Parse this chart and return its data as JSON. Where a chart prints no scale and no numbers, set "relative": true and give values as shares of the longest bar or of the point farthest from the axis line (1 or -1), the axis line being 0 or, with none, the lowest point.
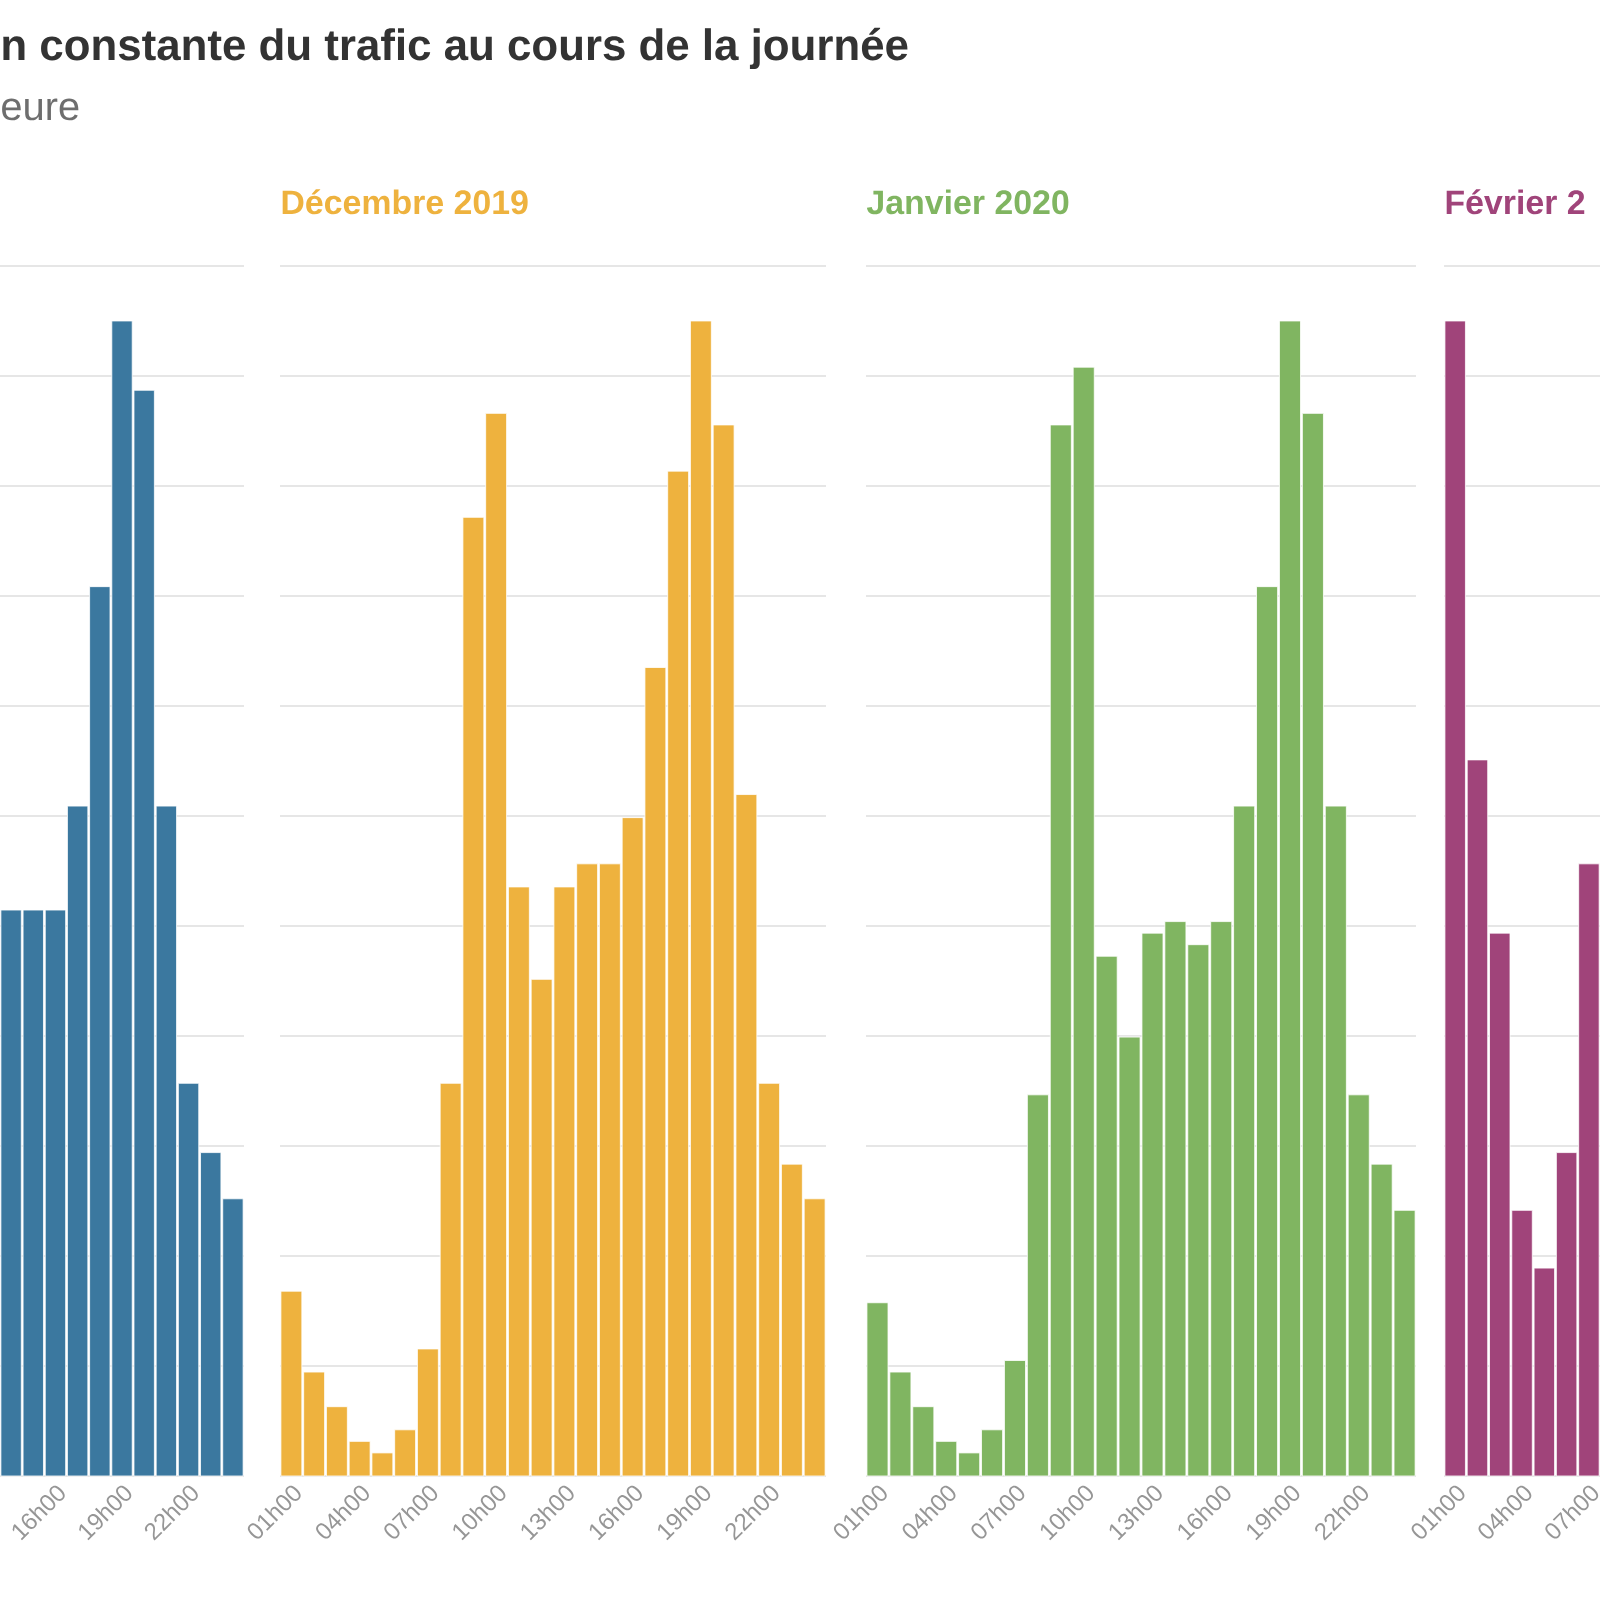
{
  "chart_data": [
    {
      "type": "bar",
      "relative": true,
      "grid": "y",
      "color": "#3b789f",
      "title": "n constante du trafic au cours de la journée",
      "subtitle": "eure",
      "categories": [
        null,
        null,
        "16h00",
        null,
        null,
        "19h00",
        null,
        null,
        "22h00",
        null,
        null
      ],
      "values": [
        0.49,
        0.49,
        0.49,
        0.58,
        0.77,
        1,
        0.94,
        0.58,
        0.34,
        0.28,
        0.24
      ]
    },
    {
      "type": "bar",
      "relative": true,
      "grid": "y",
      "color": "#eeb23e",
      "title": "Décembre 2019",
      "categories": [
        "01h00",
        null,
        null,
        "04h00",
        null,
        null,
        "07h00",
        null,
        null,
        "10h00",
        null,
        null,
        "13h00",
        null,
        null,
        "16h00",
        null,
        null,
        "19h00",
        null,
        null,
        "22h00",
        null,
        null
      ],
      "values": [
        0.16,
        0.09,
        0.06,
        0.03,
        0.02,
        0.04,
        0.11,
        0.34,
        0.83,
        0.92,
        0.51,
        0.43,
        0.51,
        0.53,
        0.53,
        0.57,
        0.7,
        0.87,
        1,
        0.91,
        0.59,
        0.34,
        0.27,
        0.24
      ]
    },
    {
      "type": "bar",
      "relative": true,
      "grid": "y",
      "color": "#80b561",
      "title": "Janvier 2020",
      "categories": [
        "01h00",
        null,
        null,
        "04h00",
        null,
        null,
        "07h00",
        null,
        null,
        "10h00",
        null,
        null,
        "13h00",
        null,
        null,
        "16h00",
        null,
        null,
        "19h00",
        null,
        null,
        "22h00",
        null,
        null
      ],
      "values": [
        0.15,
        0.09,
        0.06,
        0.03,
        0.02,
        0.04,
        0.1,
        0.33,
        0.91,
        0.96,
        0.45,
        0.38,
        0.47,
        0.48,
        0.46,
        0.48,
        0.58,
        0.77,
        1,
        0.92,
        0.58,
        0.33,
        0.27,
        0.23
      ]
    },
    {
      "type": "bar",
      "relative": true,
      "grid": "y",
      "color": "#a0447a",
      "title": "Février 2",
      "categories": [
        "01h00",
        null,
        null,
        "04h00",
        null,
        null,
        "07h00"
      ],
      "values": [
        1,
        0.62,
        0.47,
        0.23,
        0.18,
        0.28,
        0.53
      ]
    }
  ]
}
